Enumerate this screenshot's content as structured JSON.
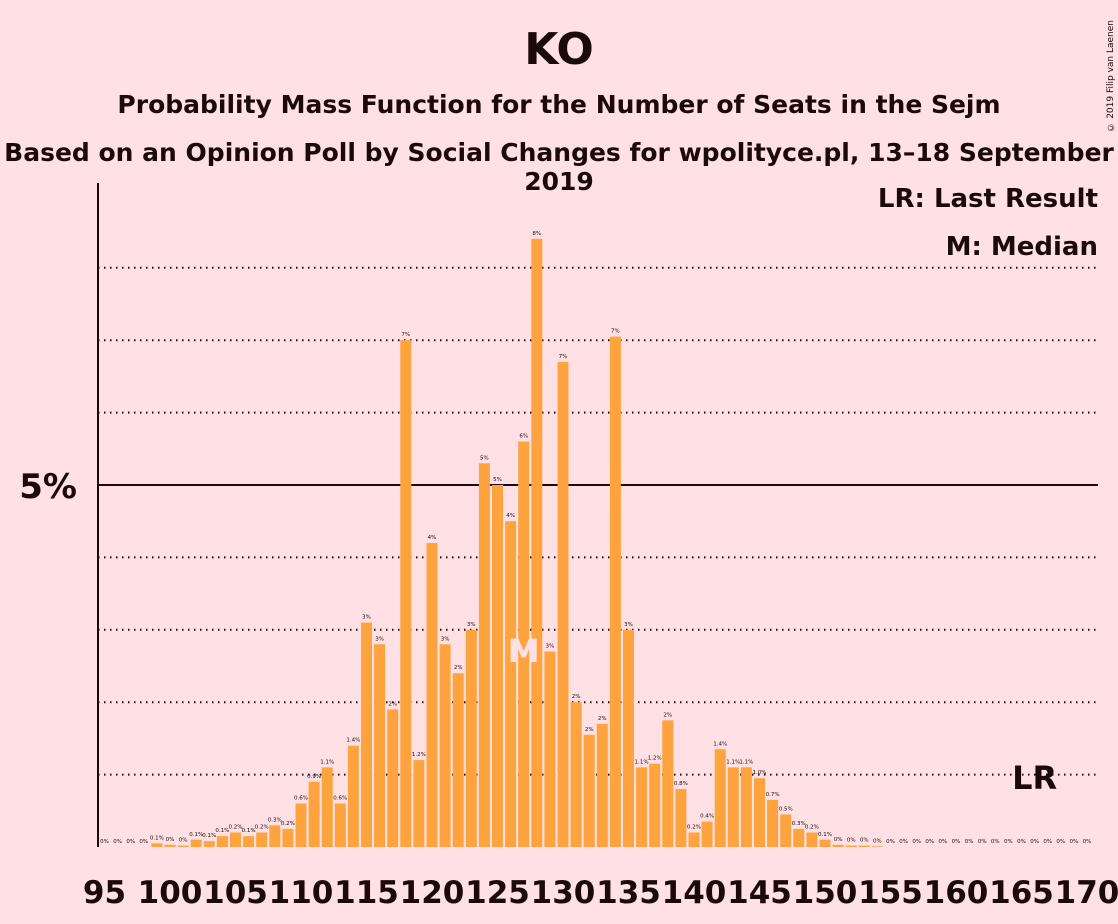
{
  "title": "KO",
  "subtitle": "Probability Mass Function for the Number of Seats in the Sejm",
  "subtitle2": "Based on an Opinion Poll by Social Changes for wpolityce.pl, 13–18 September 2019",
  "copyright": "© 2019 Filip van Laenen",
  "legend": {
    "lr": "LR: Last Result",
    "m": "M: Median"
  },
  "colors": {
    "bar": "#ffa33f",
    "background": "#ffe0e4",
    "text": "#1a0a0a"
  },
  "chart_data": {
    "type": "bar",
    "x": [
      95,
      96,
      97,
      98,
      99,
      100,
      101,
      102,
      103,
      104,
      105,
      106,
      107,
      108,
      109,
      110,
      111,
      112,
      113,
      114,
      115,
      116,
      117,
      118,
      119,
      120,
      121,
      122,
      123,
      124,
      125,
      126,
      127,
      128,
      129,
      130,
      131,
      132,
      133,
      134,
      135,
      136,
      137,
      138,
      139,
      140,
      141,
      142,
      143,
      144,
      145,
      146,
      147,
      148,
      149,
      150,
      151,
      152,
      153,
      154,
      155,
      156,
      157,
      158,
      159,
      160,
      161,
      162,
      163,
      164,
      165,
      166,
      167,
      168,
      169,
      170
    ],
    "values": [
      0,
      0,
      0,
      0,
      0.05,
      0.03,
      0.02,
      0.1,
      0.08,
      0.15,
      0.2,
      0.15,
      0.2,
      0.3,
      0.25,
      0.6,
      0.9,
      1.1,
      0.6,
      1.4,
      3.1,
      2.8,
      1.9,
      7.0,
      1.2,
      4.2,
      2.8,
      2.4,
      3.0,
      5.3,
      5.0,
      4.5,
      5.6,
      8.4,
      2.7,
      6.7,
      2.0,
      1.55,
      1.7,
      7.05,
      3.0,
      1.1,
      1.15,
      1.75,
      0.8,
      0.2,
      0.35,
      1.35,
      1.1,
      1.1,
      0.95,
      0.65,
      0.45,
      0.25,
      0.2,
      0.1,
      0.03,
      0.02,
      0.02,
      0.01,
      0,
      0,
      0,
      0,
      0,
      0,
      0,
      0,
      0,
      0,
      0,
      0,
      0,
      0,
      0,
      0
    ],
    "labels": [
      "0%",
      "0%",
      "0%",
      "0%",
      "0.1%",
      "0%",
      "0%",
      "0.1%",
      "0.1%",
      "0.1%",
      "0.2%",
      "0.1%",
      "0.2%",
      "0.3%",
      "0.2%",
      "0.6%",
      "0.9%",
      "1.1%",
      "0.6%",
      "1.4%",
      "3%",
      "3%",
      "2%",
      "7%",
      "1.2%",
      "4%",
      "3%",
      "2%",
      "3%",
      "5%",
      "5%",
      "4%",
      "6%",
      "8%",
      "3%",
      "7%",
      "2%",
      "2%",
      "2%",
      "7%",
      "3%",
      "1.1%",
      "1.2%",
      "2%",
      "0.8%",
      "0.2%",
      "0.4%",
      "1.4%",
      "1.1%",
      "1.1%",
      "1.0%",
      "0.7%",
      "0.5%",
      "0.3%",
      "0.2%",
      "0.1%",
      "0%",
      "0%",
      "0%",
      "0%",
      "0%",
      "0%",
      "0%",
      "0%",
      "0%",
      "0%",
      "0%",
      "0%",
      "0%",
      "0%",
      "0%",
      "0%",
      "0%",
      "0%",
      "0%",
      "0%"
    ],
    "xticks": [
      95,
      100,
      105,
      110,
      115,
      120,
      125,
      130,
      135,
      140,
      145,
      150,
      155,
      160,
      165,
      170
    ],
    "ytick_label": "5%",
    "ylim": [
      0,
      8.4
    ],
    "gridlines": [
      1,
      2,
      3,
      4,
      5,
      6,
      7,
      8
    ],
    "solid_gridline": 5,
    "median_seat": 127,
    "median_label": "M",
    "last_result_seat": 166,
    "last_result_label": "LR"
  }
}
